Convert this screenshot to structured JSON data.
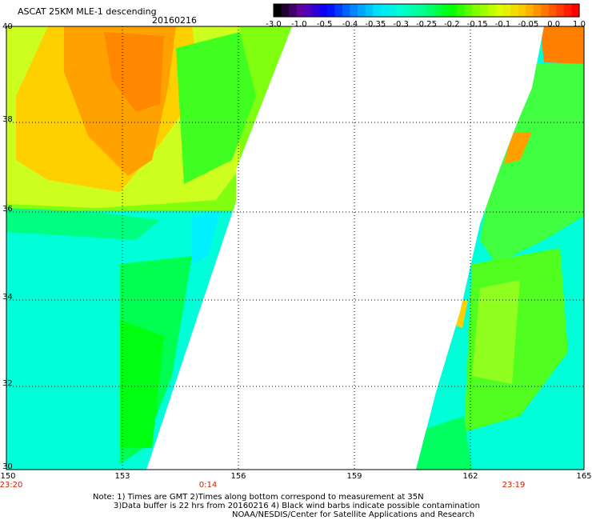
{
  "title": "ASCAT 25KM MLE-1 descending",
  "date": "20160216",
  "colorbar": {
    "labels": [
      "-3.0",
      "-1.0",
      "-0.5",
      "-0.4",
      "-0.35",
      "-0.3",
      "-0.25",
      "-0.2",
      "-0.15",
      "-0.1",
      "-0.05",
      "0.0",
      "1.0"
    ],
    "colors": [
      "#000000",
      "#6a00a8",
      "#0000ff",
      "#0080ff",
      "#00e0ff",
      "#00ffd0",
      "#00ff80",
      "#00ff00",
      "#80ff00",
      "#e0ff00",
      "#ffc000",
      "#ff6000",
      "#ff0000"
    ]
  },
  "map": {
    "lon_range": [
      150,
      165
    ],
    "lat_range": [
      30,
      40
    ],
    "x_ticks": [
      "150",
      "153",
      "156",
      "159",
      "162",
      "165"
    ],
    "y_ticks": [
      "40",
      "38",
      "36",
      "34",
      "32",
      "30"
    ],
    "grid": "dotted"
  },
  "times": [
    {
      "label": "23:20",
      "lon": 150
    },
    {
      "label": "0:14",
      "lon": 155.3
    },
    {
      "label": "23:19",
      "lon": 163.5
    }
  ],
  "notes": [
    "Note: 1) Times are GMT 2)Times along bottom correspond to measurement at 35N",
    "3)Data buffer is 22 hrs from 20160216 4) Black wind barbs indicate possible contamination",
    "NOAA/NESDIS/Center for Satellite Applications and Research"
  ]
}
